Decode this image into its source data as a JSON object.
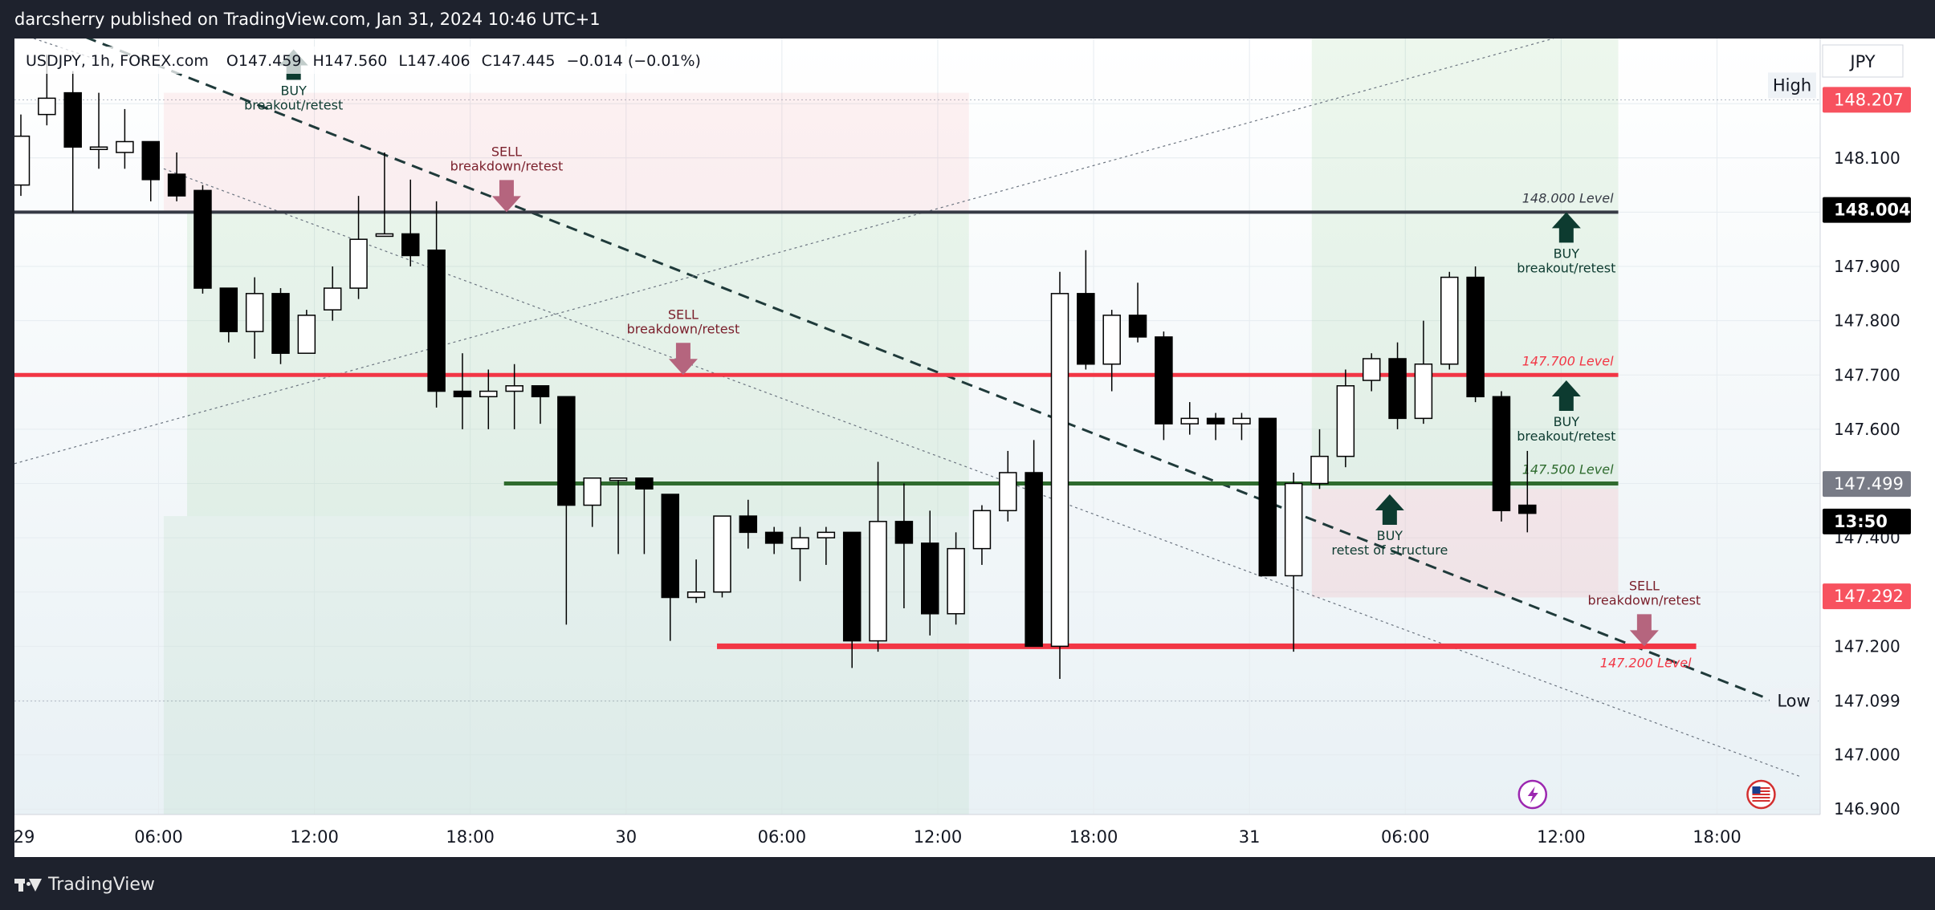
{
  "header": {
    "published_text": "darcsherry published on TradingView.com, Jan 31, 2024 10:46 UTC+1"
  },
  "legend": {
    "symbol_text": "USDJPY, 1h, FOREX.com",
    "o": "O147.459",
    "h": "H147.560",
    "l": "L147.406",
    "c": "C147.445",
    "change": "−0.014 (−0.01%)"
  },
  "price_axis": {
    "currency": "JPY",
    "high_label": "High",
    "low_label": "Low",
    "badges": [
      {
        "text": "148.207",
        "value": 148.207,
        "bg": "#f7525f"
      },
      {
        "text": "148.004",
        "value": 148.004,
        "bg": "#000000"
      },
      {
        "text": "147.499",
        "value": 147.499,
        "bg": "#787b86"
      },
      {
        "text": "13:50",
        "value": 147.43,
        "bg": "#000000"
      },
      {
        "text": "147.292",
        "value": 147.292,
        "bg": "#f7525f"
      },
      {
        "text": "147.099",
        "value": 147.099,
        "bg": "#1e222d"
      }
    ]
  },
  "footer": {
    "brand": "TradingView"
  },
  "colors": {
    "up_candle": "#ffffff",
    "down_candle": "#000000",
    "red_level": "#f23645",
    "green_level": "#2e6b2e",
    "sell_arrow": "#b5657e",
    "buy_arrow": "#0d3b30",
    "sell_text": "#7a1f2b",
    "buy_text": "#0d3b30"
  },
  "chart_data": {
    "type": "candlestick",
    "symbol": "USDJPY",
    "timeframe": "1h",
    "ylim": [
      146.89,
      148.32
    ],
    "yticks": [
      146.9,
      147.0,
      147.1,
      147.2,
      147.3,
      147.4,
      147.5,
      147.6,
      147.7,
      147.8,
      147.9,
      148.0,
      148.1,
      148.2
    ],
    "ytick_labels": [
      "146.900",
      "147.000",
      "",
      "147.200",
      "",
      "147.400",
      "",
      "147.600",
      "147.700",
      "147.800",
      "147.900",
      "",
      "148.100",
      ""
    ],
    "xticks": [
      {
        "index": -0.7,
        "label": "29"
      },
      {
        "index": 5.3,
        "label": "06:00"
      },
      {
        "index": 11.3,
        "label": "12:00"
      },
      {
        "index": 17.3,
        "label": "18:00"
      },
      {
        "index": 23.3,
        "label": "30"
      },
      {
        "index": 29.3,
        "label": "06:00"
      },
      {
        "index": 35.3,
        "label": "12:00"
      },
      {
        "index": 41.3,
        "label": "18:00"
      },
      {
        "index": 47.3,
        "label": "31"
      },
      {
        "index": 53.3,
        "label": "06:00"
      },
      {
        "index": 59.3,
        "label": "12:00"
      },
      {
        "index": 65.3,
        "label": "18:00"
      }
    ],
    "candles": [
      {
        "o": 148.05,
        "h": 148.18,
        "l": 148.03,
        "c": 148.14
      },
      {
        "o": 148.18,
        "h": 148.29,
        "l": 148.16,
        "c": 148.21
      },
      {
        "o": 148.22,
        "h": 148.26,
        "l": 148.0,
        "c": 148.12
      },
      {
        "o": 148.12,
        "h": 148.22,
        "l": 148.08,
        "c": 148.12
      },
      {
        "o": 148.11,
        "h": 148.19,
        "l": 148.08,
        "c": 148.13
      },
      {
        "o": 148.13,
        "h": 148.13,
        "l": 148.02,
        "c": 148.06
      },
      {
        "o": 148.07,
        "h": 148.11,
        "l": 148.02,
        "c": 148.03
      },
      {
        "o": 148.04,
        "h": 148.05,
        "l": 147.85,
        "c": 147.86
      },
      {
        "o": 147.86,
        "h": 147.86,
        "l": 147.76,
        "c": 147.78
      },
      {
        "o": 147.78,
        "h": 147.88,
        "l": 147.73,
        "c": 147.85
      },
      {
        "o": 147.85,
        "h": 147.86,
        "l": 147.72,
        "c": 147.74
      },
      {
        "o": 147.74,
        "h": 147.82,
        "l": 147.74,
        "c": 147.81
      },
      {
        "o": 147.82,
        "h": 147.9,
        "l": 147.8,
        "c": 147.86
      },
      {
        "o": 147.86,
        "h": 148.03,
        "l": 147.84,
        "c": 147.95
      },
      {
        "o": 147.96,
        "h": 148.11,
        "l": 147.96,
        "c": 147.96
      },
      {
        "o": 147.96,
        "h": 148.06,
        "l": 147.9,
        "c": 147.92
      },
      {
        "o": 147.93,
        "h": 148.02,
        "l": 147.64,
        "c": 147.67
      },
      {
        "o": 147.67,
        "h": 147.74,
        "l": 147.6,
        "c": 147.66
      },
      {
        "o": 147.66,
        "h": 147.71,
        "l": 147.6,
        "c": 147.67
      },
      {
        "o": 147.67,
        "h": 147.72,
        "l": 147.6,
        "c": 147.68
      },
      {
        "o": 147.68,
        "h": 147.68,
        "l": 147.61,
        "c": 147.66
      },
      {
        "o": 147.66,
        "h": 147.66,
        "l": 147.24,
        "c": 147.46
      },
      {
        "o": 147.46,
        "h": 147.51,
        "l": 147.42,
        "c": 147.51
      },
      {
        "o": 147.51,
        "h": 147.51,
        "l": 147.37,
        "c": 147.51
      },
      {
        "o": 147.51,
        "h": 147.51,
        "l": 147.37,
        "c": 147.49
      },
      {
        "o": 147.48,
        "h": 147.48,
        "l": 147.21,
        "c": 147.29
      },
      {
        "o": 147.29,
        "h": 147.36,
        "l": 147.28,
        "c": 147.3
      },
      {
        "o": 147.3,
        "h": 147.44,
        "l": 147.29,
        "c": 147.44
      },
      {
        "o": 147.44,
        "h": 147.47,
        "l": 147.38,
        "c": 147.41
      },
      {
        "o": 147.41,
        "h": 147.42,
        "l": 147.37,
        "c": 147.39
      },
      {
        "o": 147.38,
        "h": 147.42,
        "l": 147.32,
        "c": 147.4
      },
      {
        "o": 147.4,
        "h": 147.42,
        "l": 147.35,
        "c": 147.41
      },
      {
        "o": 147.41,
        "h": 147.41,
        "l": 147.16,
        "c": 147.21
      },
      {
        "o": 147.21,
        "h": 147.54,
        "l": 147.19,
        "c": 147.43
      },
      {
        "o": 147.43,
        "h": 147.5,
        "l": 147.27,
        "c": 147.39
      },
      {
        "o": 147.39,
        "h": 147.45,
        "l": 147.22,
        "c": 147.26
      },
      {
        "o": 147.26,
        "h": 147.41,
        "l": 147.24,
        "c": 147.38
      },
      {
        "o": 147.38,
        "h": 147.46,
        "l": 147.35,
        "c": 147.45
      },
      {
        "o": 147.45,
        "h": 147.56,
        "l": 147.43,
        "c": 147.52
      },
      {
        "o": 147.52,
        "h": 147.58,
        "l": 147.2,
        "c": 147.2
      },
      {
        "o": 147.2,
        "h": 147.89,
        "l": 147.14,
        "c": 147.85
      },
      {
        "o": 147.85,
        "h": 147.93,
        "l": 147.71,
        "c": 147.72
      },
      {
        "o": 147.72,
        "h": 147.82,
        "l": 147.67,
        "c": 147.81
      },
      {
        "o": 147.81,
        "h": 147.87,
        "l": 147.76,
        "c": 147.77
      },
      {
        "o": 147.77,
        "h": 147.78,
        "l": 147.58,
        "c": 147.61
      },
      {
        "o": 147.61,
        "h": 147.65,
        "l": 147.59,
        "c": 147.62
      },
      {
        "o": 147.62,
        "h": 147.63,
        "l": 147.58,
        "c": 147.61
      },
      {
        "o": 147.61,
        "h": 147.63,
        "l": 147.58,
        "c": 147.62
      },
      {
        "o": 147.62,
        "h": 147.62,
        "l": 147.33,
        "c": 147.33
      },
      {
        "o": 147.33,
        "h": 147.52,
        "l": 147.19,
        "c": 147.5
      },
      {
        "o": 147.5,
        "h": 147.6,
        "l": 147.49,
        "c": 147.55
      },
      {
        "o": 147.55,
        "h": 147.71,
        "l": 147.53,
        "c": 147.68
      },
      {
        "o": 147.69,
        "h": 147.74,
        "l": 147.67,
        "c": 147.73
      },
      {
        "o": 147.73,
        "h": 147.76,
        "l": 147.6,
        "c": 147.62
      },
      {
        "o": 147.62,
        "h": 147.8,
        "l": 147.61,
        "c": 147.72
      },
      {
        "o": 147.72,
        "h": 147.89,
        "l": 147.71,
        "c": 147.88
      },
      {
        "o": 147.88,
        "h": 147.9,
        "l": 147.65,
        "c": 147.66
      },
      {
        "o": 147.66,
        "h": 147.67,
        "l": 147.43,
        "c": 147.45
      },
      {
        "o": 147.46,
        "h": 147.56,
        "l": 147.41,
        "c": 147.445
      }
    ],
    "levels": [
      {
        "price": 148.0,
        "label": "148.000 Level",
        "color": "#363a45",
        "from_index": -1.5,
        "to_index": 61.5,
        "width": 4
      },
      {
        "price": 147.7,
        "label": "147.700 Level",
        "color": "#f23645",
        "from_index": -1.5,
        "to_index": 61.5,
        "width": 5
      },
      {
        "price": 147.5,
        "label": "147.500 Level",
        "color": "#2e6b2e",
        "from_index": 18.6,
        "to_index": 61.5,
        "width": 5
      },
      {
        "price": 147.2,
        "label": "147.200 Level",
        "color": "#f23645",
        "from_index": 26.8,
        "to_index": 64.5,
        "width": 7
      }
    ],
    "zones": [
      {
        "from_index": 5.5,
        "to_index": 36.5,
        "top": 148.22,
        "bottom": 148.0,
        "color": "rgba(242,54,69,0.07)"
      },
      {
        "from_index": 6.4,
        "to_index": 36.5,
        "top": 148.0,
        "bottom": 147.44,
        "color": "rgba(76,175,80,0.10)"
      },
      {
        "from_index": 5.5,
        "to_index": 36.5,
        "top": 147.44,
        "bottom": 146.89,
        "color": "rgba(76,175,80,0.07)"
      },
      {
        "from_index": 49.7,
        "to_index": 61.5,
        "top": 148.32,
        "bottom": 147.49,
        "color": "rgba(76,175,80,0.10)"
      },
      {
        "from_index": 49.7,
        "to_index": 61.5,
        "top": 147.49,
        "bottom": 147.29,
        "color": "rgba(242,54,69,0.09)"
      }
    ],
    "trendlines": [
      {
        "from_index": 0.5,
        "from_price": 148.36,
        "to_index": 68.5,
        "to_price": 147.08,
        "style": "dashed-bold"
      },
      {
        "from_index": 5.5,
        "from_price": 148.08,
        "to_index": 68.5,
        "to_price": 146.96,
        "style": "dotted"
      },
      {
        "from_index": -1.5,
        "from_price": 147.52,
        "to_index": 59.0,
        "to_price": 148.32,
        "style": "dotted"
      },
      {
        "from_index": 0.5,
        "from_price": 148.32,
        "to_index": 3.0,
        "to_price": 148.28,
        "style": "dotted"
      }
    ],
    "annotations": [
      {
        "kind": "buy",
        "index": 10.5,
        "price": 148.3,
        "lines": [
          "BUY",
          "breakout/retest"
        ],
        "text_below": true
      },
      {
        "kind": "sell",
        "index": 18.7,
        "price": 148.0,
        "lines": [
          "SELL",
          "breakdown/retest"
        ],
        "text_below": false
      },
      {
        "kind": "sell",
        "index": 25.5,
        "price": 147.7,
        "lines": [
          "SELL",
          "breakdown/retest"
        ],
        "text_below": false
      },
      {
        "kind": "buy",
        "index": 59.5,
        "price": 148.0,
        "lines": [
          "BUY",
          "breakout/retest"
        ],
        "text_below": true
      },
      {
        "kind": "buy",
        "index": 59.5,
        "price": 147.69,
        "lines": [
          "BUY",
          "breakout/retest"
        ],
        "text_below": true
      },
      {
        "kind": "buy",
        "index": 52.7,
        "price": 147.48,
        "lines": [
          "BUY",
          "retest of structure"
        ],
        "text_below": true
      },
      {
        "kind": "sell",
        "index": 62.5,
        "price": 147.2,
        "lines": [
          "SELL",
          "breakdown/retest"
        ],
        "text_below": false
      }
    ],
    "high_value": 148.207,
    "low_value": 147.099,
    "events": [
      {
        "index": 58.2,
        "kind": "lightning-icon"
      },
      {
        "index": 67.0,
        "kind": "us-flag-icon"
      }
    ]
  }
}
